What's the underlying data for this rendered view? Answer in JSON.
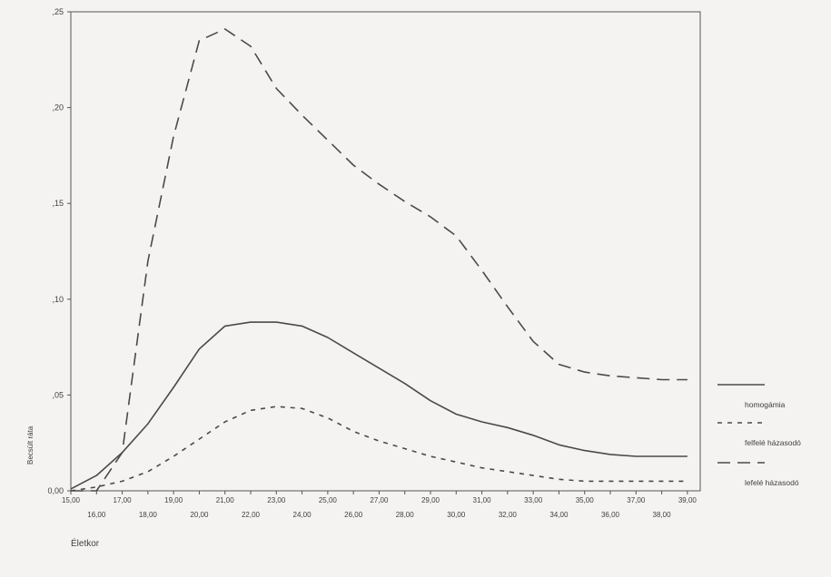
{
  "chart_data": {
    "type": "line",
    "title": "",
    "xlabel": "Életkor",
    "ylabel": "Becsült ráta",
    "x_tick_labels_row1": [
      "15,00",
      "17,00",
      "19,00",
      "21,00",
      "23,00",
      "25,00",
      "27,00",
      "29,00",
      "31,00",
      "33,00",
      "35,00",
      "37,00",
      "39,00"
    ],
    "x_tick_labels_row2": [
      "16,00",
      "18,00",
      "20,00",
      "22,00",
      "24,00",
      "26,00",
      "28,00",
      "30,00",
      "32,00",
      "34,00",
      "36,00",
      "38,00"
    ],
    "y_tick_labels": [
      "0,00",
      ",05",
      ",10",
      ",15",
      ",20",
      ",25"
    ],
    "xlim": [
      15,
      39.5
    ],
    "ylim": [
      0,
      0.25
    ],
    "grid": false,
    "legend_position": "right",
    "x": [
      15,
      16,
      17,
      18,
      19,
      20,
      21,
      22,
      23,
      24,
      25,
      26,
      27,
      28,
      29,
      30,
      31,
      32,
      33,
      34,
      35,
      36,
      37,
      38,
      39
    ],
    "series": [
      {
        "name": "homogámia",
        "line_style": "solid",
        "values": [
          0.001,
          0.008,
          0.02,
          0.035,
          0.054,
          0.074,
          0.086,
          0.088,
          0.088,
          0.086,
          0.08,
          0.072,
          0.064,
          0.056,
          0.047,
          0.04,
          0.036,
          0.033,
          0.029,
          0.024,
          0.021,
          0.019,
          0.018,
          0.018,
          0.018
        ]
      },
      {
        "name": "felfelé házasodó",
        "line_style": "short-dash",
        "values": [
          0.0,
          0.002,
          0.005,
          0.01,
          0.018,
          0.027,
          0.036,
          0.042,
          0.044,
          0.043,
          0.038,
          0.031,
          0.026,
          0.022,
          0.018,
          0.015,
          0.012,
          0.01,
          0.008,
          0.006,
          0.005,
          0.005,
          0.005,
          0.005,
          0.005
        ]
      },
      {
        "name": "lefelé házasodó",
        "line_style": "long-dash",
        "values": [
          0.0,
          0.0,
          0.02,
          0.12,
          0.185,
          0.235,
          0.241,
          0.232,
          0.21,
          0.196,
          0.183,
          0.17,
          0.16,
          0.151,
          0.143,
          0.133,
          0.115,
          0.096,
          0.078,
          0.066,
          0.062,
          0.06,
          0.059,
          0.058,
          0.058
        ]
      }
    ]
  },
  "legend_labels": [
    "homogámia",
    "felfelé házasodó",
    "lefelé házasodó"
  ]
}
